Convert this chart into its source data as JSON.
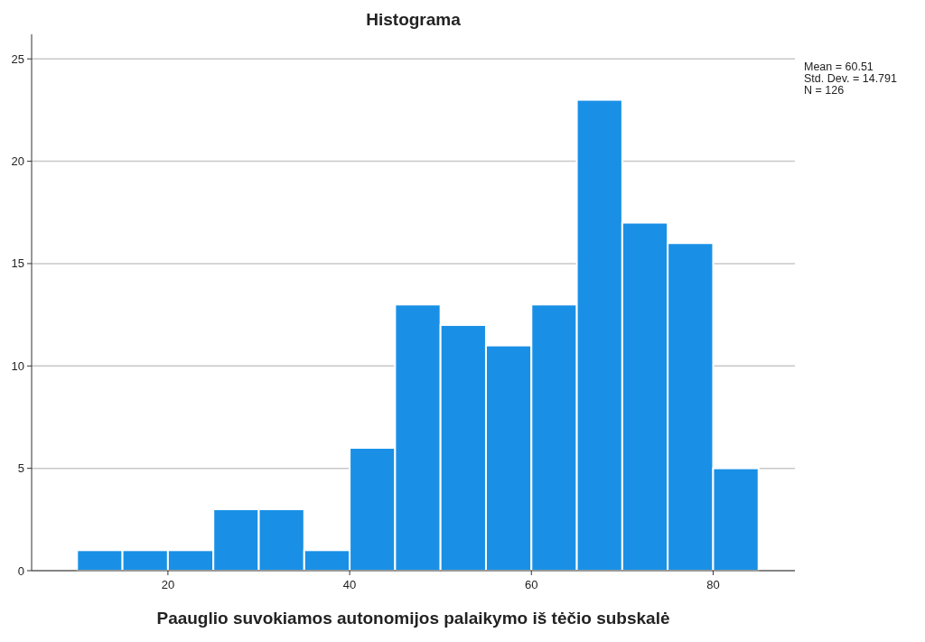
{
  "chart_data": {
    "type": "histogram",
    "title": "Histograma",
    "xlabel": "Paauglio suvokiamos autonomijos palaikymo iš tėčio subskalė",
    "bins": [
      10,
      15,
      20,
      25,
      30,
      35,
      40,
      45,
      50,
      55,
      60,
      65,
      70,
      75,
      80,
      85
    ],
    "values": [
      1,
      1,
      1,
      3,
      3,
      1,
      6,
      13,
      12,
      11,
      13,
      23,
      17,
      16,
      5
    ],
    "color": "#1990e6",
    "xlim": [
      5,
      89
    ],
    "xticks": [
      20,
      40,
      60,
      80
    ],
    "ylim": [
      0,
      26.2
    ],
    "yticks": [
      0,
      5,
      10,
      15,
      20,
      25
    ],
    "grid": "y",
    "annotations": [
      "Mean = 60.51",
      "Std. Dev. = 14.791",
      "N = 126"
    ]
  }
}
